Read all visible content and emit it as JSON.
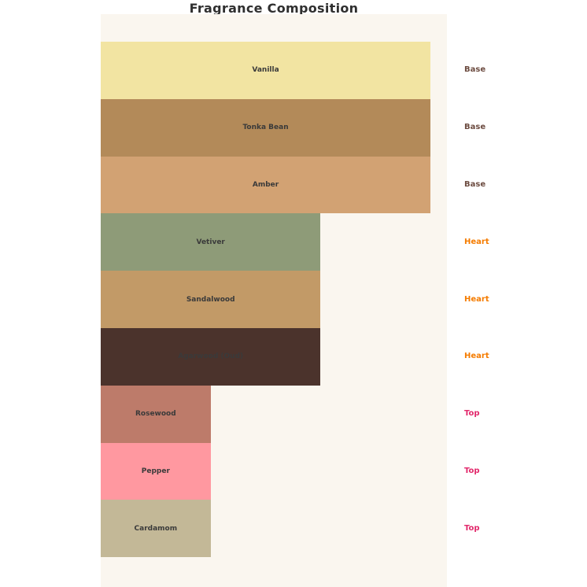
{
  "title": "Fragrance Composition",
  "colors": {
    "page_background": "#ffffff",
    "plot_background": "#faf6ef",
    "title_text": "#2f2f2f",
    "bar_label_text": "#3a3a3a"
  },
  "chart_data": {
    "type": "bar",
    "orientation": "horizontal",
    "title": "Fragrance Composition",
    "categories": [
      "Vanilla",
      "Tonka Bean",
      "Amber",
      "Vetiver",
      "Sandalwood",
      "Agarwood (Oud)",
      "Rosewood",
      "Pepper",
      "Cardamom"
    ],
    "values": [
      3,
      3,
      3,
      2,
      2,
      2,
      1,
      1,
      1
    ],
    "bar_colors": [
      "#f2e4a2",
      "#b38a59",
      "#d2a273",
      "#8e9b78",
      "#c29a67",
      "#4b332c",
      "#bd7b6a",
      "#ff98a0",
      "#c3b897"
    ],
    "group_labels": [
      "Base",
      "Base",
      "Base",
      "Heart",
      "Heart",
      "Heart",
      "Top",
      "Top",
      "Top"
    ],
    "group_label_colors": {
      "Base": "#6d4c41",
      "Heart": "#f57c00",
      "Top": "#e2286b"
    },
    "xlabel": "",
    "ylabel": "",
    "xlim": [
      0,
      3.15
    ],
    "axes_visible": false,
    "grid": false,
    "legend": "none",
    "label_position": "center-of-bar",
    "group_label_position": "right-of-plot"
  }
}
